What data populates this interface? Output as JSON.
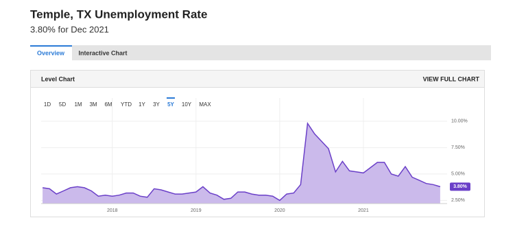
{
  "header": {
    "title": "Temple, TX Unemployment Rate",
    "subtitle": "3.80% for Dec 2021"
  },
  "tabs": [
    "Overview",
    "Interactive Chart"
  ],
  "panel": {
    "title": "Level Chart",
    "link": "VIEW FULL CHART"
  },
  "ranges": [
    "1D",
    "5D",
    "1M",
    "3M",
    "6M",
    "YTD",
    "1Y",
    "3Y",
    "5Y",
    "10Y",
    "MAX"
  ],
  "active_range": 8,
  "chart_data": {
    "type": "area",
    "x": [
      2017.167,
      2017.25,
      2017.333,
      2017.417,
      2017.5,
      2017.583,
      2017.667,
      2017.75,
      2017.833,
      2017.917,
      2018.0,
      2018.083,
      2018.167,
      2018.25,
      2018.333,
      2018.417,
      2018.5,
      2018.583,
      2018.667,
      2018.75,
      2018.833,
      2018.917,
      2019.0,
      2019.083,
      2019.167,
      2019.25,
      2019.333,
      2019.417,
      2019.5,
      2019.583,
      2019.667,
      2019.75,
      2019.833,
      2019.917,
      2020.0,
      2020.083,
      2020.167,
      2020.25,
      2020.333,
      2020.417,
      2020.5,
      2020.583,
      2020.667,
      2020.75,
      2020.833,
      2020.917,
      2021.0,
      2021.083,
      2021.167,
      2021.25,
      2021.333,
      2021.417,
      2021.5,
      2021.583,
      2021.667,
      2021.75,
      2021.833,
      2021.917
    ],
    "values": [
      3.7,
      3.6,
      3.1,
      3.4,
      3.7,
      3.8,
      3.7,
      3.4,
      2.9,
      3.0,
      2.9,
      3.0,
      3.2,
      3.2,
      2.9,
      2.8,
      3.6,
      3.5,
      3.3,
      3.1,
      3.1,
      3.2,
      3.3,
      3.8,
      3.2,
      3.0,
      2.6,
      2.7,
      3.3,
      3.3,
      3.1,
      3.0,
      3.0,
      2.9,
      2.5,
      3.1,
      3.2,
      4.0,
      9.8,
      8.8,
      8.1,
      7.4,
      5.2,
      6.2,
      5.3,
      5.2,
      5.1,
      5.6,
      6.1,
      6.1,
      5.0,
      4.8,
      5.7,
      4.7,
      4.4,
      4.1,
      4.0,
      3.8
    ],
    "current_label": "3.80%",
    "line_color": "#6a3fc8",
    "fill_color": "#cbbaeb",
    "xlim": [
      2017.15,
      2022.0
    ],
    "xticks": [
      2018,
      2019,
      2020,
      2021
    ],
    "ylim": [
      2.2,
      12.2
    ],
    "yticks": [
      {
        "value": 2.5,
        "label": "2.50%"
      },
      {
        "value": 5,
        "label": "5.00%"
      },
      {
        "value": 7.5,
        "label": "7.50%"
      },
      {
        "value": 10,
        "label": "10.00%"
      }
    ],
    "grid": true
  }
}
